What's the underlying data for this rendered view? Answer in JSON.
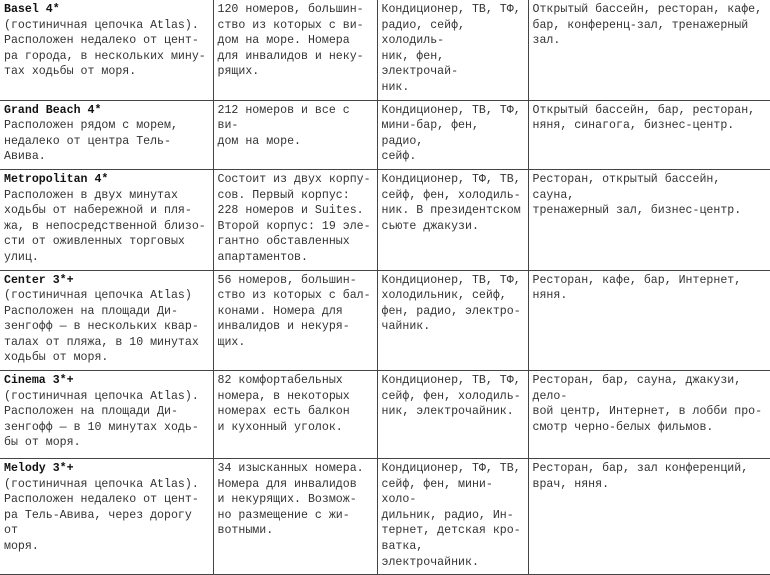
{
  "hotels": [
    {
      "name": "Basel 4*",
      "description": "(гостиничная цепочка Atlas).\nРасположен недалеко от цент-\nра города, в нескольких мину-\nтах ходьбы от моря.",
      "rooms": "120 номеров, большин-\nство из которых с ви-\nдом на море. Номера\nдля инвалидов и неку-\nрящих.",
      "in_room": "Кондиционер, ТВ, ТФ,\nрадио, сейф, холодиль-\nник, фен, электрочай-\nник.",
      "facilities": "Открытый бассейн, ресторан, кафе,\nбар, конференц-зал, тренажерный\nзал."
    },
    {
      "name": "Grand Beach 4*",
      "description": "Расположен рядом с морем,\nнедалеко от центра Тель-Авива.",
      "rooms": "212 номеров и все с ви-\nдом на море.",
      "in_room": "Кондиционер, ТВ, ТФ,\nмини-бар, фен, радио,\nсейф.",
      "facilities": "Открытый бассейн, бар, ресторан,\nняня, синагога, бизнес-центр."
    },
    {
      "name": "Metropolitan 4*",
      "description": "Расположен в двух минутах\nходьбы от набережной и пля-\nжа, в непосредственной близо-\nсти от оживленных торговых\nулиц.",
      "rooms": "Состоит из двух корпу-\nсов. Первый корпус:\n228 номеров и Suites.\nВторой корпус: 19 эле-\nгантно обставленных\nапартаментов.",
      "in_room": "Кондиционер, ТФ, ТВ,\nсейф, фен, холодиль-\nник. В президентском\nсьюте джакузи.",
      "facilities": "Ресторан, открытый бассейн, сауна,\nтренажерный зал, бизнес-центр."
    },
    {
      "name": "Center 3*+",
      "description": "(гостиничная цепочка Atlas)\nРасположен на площади Ди-\nзенгофф — в нескольких квар-\nталах от пляжа, в 10 минутах\nходьбы от моря.",
      "rooms": "56 номеров, большин-\nство из которых с бал-\nконами. Номера для\nинвалидов и некуря-\nщих.",
      "in_room": "Кондиционер, ТВ, ТФ,\nхолодильник, сейф,\nфен, радио, электро-\nчайник.",
      "facilities": "Ресторан, кафе, бар, Интернет,\nняня."
    },
    {
      "name": "Cinema 3*+",
      "description": "(гостиничная цепочка Atlas).\nРасположен на площади Ди-\nзенгофф — в 10 минутах ходь-\nбы от моря.",
      "rooms": "82 комфортабельных\nномера, в некоторых\nномерах есть балкон\nи кухонный уголок.",
      "in_room": "Кондиционер, ТВ, ТФ,\nсейф, фен, холодиль-\nник, электрочайник.",
      "facilities": "Ресторан, бар, сауна, джакузи, дело-\nвой центр, Интернет, в лобби про-\nсмотр черно-белых фильмов."
    },
    {
      "name": "Melody 3*+",
      "description": "(гостиничная цепочка Atlas).\nРасположен недалеко от цент-\nра Тель-Авива, через дорогу от\nморя.",
      "rooms": "34 изысканных номера.\nНомера для инвалидов\nи некурящих. Возмож-\nно размещение с жи-\nвотными.",
      "in_room": "Кондиционер, ТФ, ТВ,\nсейф, фен, мини-холо-\nдильник, радио, Ин-\nтернет, детская кро-\nватка, электрочайник.",
      "facilities": "Ресторан, бар, зал конференций,\nврач, няня."
    }
  ]
}
